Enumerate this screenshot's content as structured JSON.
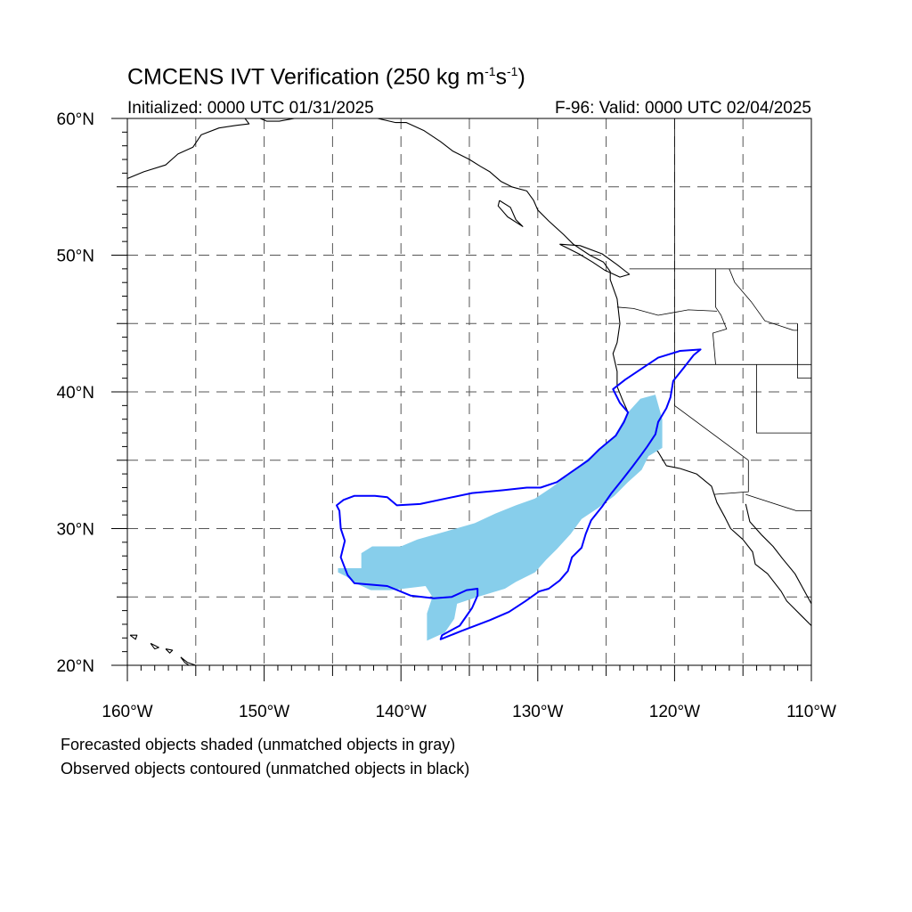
{
  "title": {
    "main": "CMCENS IVT Verification (250 kg m",
    "sup1": "-1",
    "mid": "s",
    "sup2": "-1",
    "end": ")"
  },
  "subtitle": {
    "initialized": "Initialized: 0000 UTC 01/31/2025",
    "valid": "F-96: Valid: 0000 UTC 02/04/2025"
  },
  "map": {
    "lon_range": [
      -160,
      -110
    ],
    "lat_range": [
      20,
      60
    ],
    "lat_ticks": [
      {
        "value": 20,
        "label": "20°N"
      },
      {
        "value": 30,
        "label": "30°N"
      },
      {
        "value": 40,
        "label": "40°N"
      },
      {
        "value": 50,
        "label": "50°N"
      },
      {
        "value": 60,
        "label": "60°N"
      }
    ],
    "lon_ticks": [
      {
        "value": -160,
        "label": "160°W"
      },
      {
        "value": -150,
        "label": "150°W"
      },
      {
        "value": -140,
        "label": "140°W"
      },
      {
        "value": -130,
        "label": "130°W"
      },
      {
        "value": -120,
        "label": "120°W"
      },
      {
        "value": -110,
        "label": "110°W"
      }
    ],
    "grid_spacing_deg": 5,
    "grid_style": "dashed",
    "colors": {
      "forecast_fill": "#87ceeb",
      "observed_contour": "#0000ff",
      "coastline": "#000000",
      "grid": "#555555"
    },
    "forecast_object": [
      [
        -144.0,
        27.1
      ],
      [
        -142.9,
        27.1
      ],
      [
        -142.9,
        28.2
      ],
      [
        -142.1,
        28.7
      ],
      [
        -140.0,
        28.7
      ],
      [
        -138.8,
        29.2
      ],
      [
        -136.7,
        29.8
      ],
      [
        -134.6,
        30.4
      ],
      [
        -133.1,
        31.1
      ],
      [
        -131.6,
        31.7
      ],
      [
        -130.2,
        32.2
      ],
      [
        -129.0,
        33.0
      ],
      [
        -127.8,
        33.9
      ],
      [
        -126.6,
        34.9
      ],
      [
        -125.6,
        35.7
      ],
      [
        -124.5,
        36.6
      ],
      [
        -123.8,
        37.8
      ],
      [
        -123.4,
        38.5
      ],
      [
        -122.5,
        39.5
      ],
      [
        -121.4,
        39.8
      ],
      [
        -120.9,
        38.0
      ],
      [
        -120.9,
        35.9
      ],
      [
        -121.9,
        35.3
      ],
      [
        -122.4,
        34.3
      ],
      [
        -123.4,
        33.4
      ],
      [
        -124.4,
        32.4
      ],
      [
        -125.6,
        31.5
      ],
      [
        -126.8,
        30.7
      ],
      [
        -127.6,
        29.6
      ],
      [
        -128.6,
        28.5
      ],
      [
        -129.4,
        27.7
      ],
      [
        -130.2,
        26.8
      ],
      [
        -131.6,
        26.1
      ],
      [
        -132.4,
        25.6
      ],
      [
        -134.4,
        25.0
      ],
      [
        -135.9,
        24.5
      ],
      [
        -136.1,
        23.4
      ],
      [
        -136.8,
        22.4
      ],
      [
        -138.1,
        21.8
      ],
      [
        -138.1,
        23.8
      ],
      [
        -137.7,
        25.0
      ],
      [
        -138.2,
        25.8
      ],
      [
        -140.7,
        25.5
      ],
      [
        -142.2,
        25.5
      ],
      [
        -143.3,
        26.0
      ],
      [
        -144.0,
        26.5
      ],
      [
        -144.6,
        26.8
      ],
      [
        -144.6,
        27.1
      ]
    ],
    "observed_object": [
      [
        -144.2,
        32.1
      ],
      [
        -143.4,
        32.4
      ],
      [
        -141.9,
        32.4
      ],
      [
        -141.0,
        32.3
      ],
      [
        -140.3,
        31.7
      ],
      [
        -138.6,
        31.8
      ],
      [
        -136.7,
        32.2
      ],
      [
        -134.8,
        32.6
      ],
      [
        -132.6,
        32.8
      ],
      [
        -130.8,
        33.0
      ],
      [
        -129.8,
        33.0
      ],
      [
        -128.6,
        33.4
      ],
      [
        -127.6,
        34.1
      ],
      [
        -126.3,
        35.0
      ],
      [
        -125.5,
        35.8
      ],
      [
        -124.3,
        36.8
      ],
      [
        -123.7,
        37.8
      ],
      [
        -123.4,
        38.5
      ],
      [
        -124.0,
        39.2
      ],
      [
        -124.5,
        40.2
      ],
      [
        -123.6,
        40.9
      ],
      [
        -122.1,
        41.9
      ],
      [
        -121.2,
        42.5
      ],
      [
        -119.6,
        43.0
      ],
      [
        -118.1,
        43.1
      ],
      [
        -118.6,
        42.7
      ],
      [
        -119.3,
        41.8
      ],
      [
        -120.1,
        40.8
      ],
      [
        -120.3,
        39.6
      ],
      [
        -120.6,
        38.8
      ],
      [
        -121.2,
        37.8
      ],
      [
        -121.4,
        36.9
      ],
      [
        -122.0,
        36.0
      ],
      [
        -122.5,
        35.3
      ],
      [
        -123.1,
        34.5
      ],
      [
        -123.8,
        33.6
      ],
      [
        -124.6,
        32.6
      ],
      [
        -125.3,
        31.6
      ],
      [
        -126.1,
        30.6
      ],
      [
        -126.5,
        29.6
      ],
      [
        -126.8,
        28.6
      ],
      [
        -127.5,
        27.9
      ],
      [
        -127.8,
        26.9
      ],
      [
        -128.4,
        26.2
      ],
      [
        -129.2,
        25.6
      ],
      [
        -129.9,
        25.4
      ],
      [
        -130.9,
        24.7
      ],
      [
        -132.1,
        23.9
      ],
      [
        -133.5,
        23.3
      ],
      [
        -135.6,
        22.5
      ],
      [
        -137.1,
        21.9
      ],
      [
        -137.0,
        22.2
      ],
      [
        -135.7,
        22.9
      ],
      [
        -134.8,
        24.2
      ],
      [
        -134.4,
        25.1
      ],
      [
        -134.4,
        25.6
      ],
      [
        -135.2,
        25.5
      ],
      [
        -136.3,
        25.0
      ],
      [
        -137.6,
        24.9
      ],
      [
        -139.3,
        25.1
      ],
      [
        -141.0,
        25.8
      ],
      [
        -143.4,
        26.0
      ],
      [
        -143.9,
        26.6
      ],
      [
        -144.4,
        27.9
      ],
      [
        -144.1,
        29.1
      ],
      [
        -144.4,
        30.0
      ],
      [
        -144.5,
        31.3
      ],
      [
        -144.7,
        31.7
      ],
      [
        -144.2,
        32.1
      ]
    ],
    "coastlines": [
      [
        [
          -160,
          55.6
        ],
        [
          -158.8,
          56.1
        ],
        [
          -157.2,
          56.6
        ],
        [
          -156.3,
          57.4
        ],
        [
          -155.2,
          57.9
        ],
        [
          -154.6,
          58.8
        ],
        [
          -153.3,
          59.3
        ],
        [
          -152.0,
          59.5
        ],
        [
          -151.1,
          59.6
        ],
        [
          -151.4,
          60.0
        ]
      ],
      [
        [
          -150.3,
          60.0
        ],
        [
          -149.8,
          59.8
        ],
        [
          -148.9,
          59.8
        ],
        [
          -147.8,
          60.0
        ]
      ],
      [
        [
          -141.7,
          60.0
        ],
        [
          -140.4,
          59.7
        ],
        [
          -139.6,
          59.7
        ],
        [
          -138.3,
          59.1
        ],
        [
          -137.1,
          58.3
        ],
        [
          -136.2,
          57.6
        ],
        [
          -135.0,
          57.0
        ],
        [
          -134.2,
          56.5
        ],
        [
          -133.5,
          56.1
        ],
        [
          -132.7,
          55.4
        ],
        [
          -131.9,
          55.0
        ],
        [
          -130.8,
          54.7
        ],
        [
          -130.3,
          54.0
        ],
        [
          -130.0,
          53.3
        ],
        [
          -129.2,
          52.5
        ],
        [
          -128.1,
          51.5
        ],
        [
          -127.4,
          50.8
        ],
        [
          -126.2,
          50.0
        ],
        [
          -125.2,
          49.5
        ],
        [
          -124.7,
          48.8
        ],
        [
          -124.7,
          48.2
        ],
        [
          -124.2,
          46.8
        ],
        [
          -124.0,
          45.0
        ],
        [
          -124.2,
          43.6
        ],
        [
          -124.5,
          42.8
        ],
        [
          -124.2,
          41.5
        ],
        [
          -124.2,
          40.4
        ],
        [
          -123.8,
          39.4
        ],
        [
          -123.4,
          38.5
        ],
        [
          -122.8,
          38.0
        ],
        [
          -122.5,
          37.6
        ],
        [
          -122.3,
          36.9
        ],
        [
          -121.9,
          36.4
        ],
        [
          -121.2,
          35.6
        ],
        [
          -120.6,
          34.6
        ],
        [
          -119.6,
          34.4
        ],
        [
          -118.4,
          34.0
        ],
        [
          -117.3,
          33.1
        ],
        [
          -117.1,
          32.5
        ],
        [
          -116.9,
          31.9
        ],
        [
          -116.3,
          30.8
        ],
        [
          -115.9,
          30.0
        ],
        [
          -115.0,
          29.2
        ],
        [
          -114.3,
          28.3
        ],
        [
          -114.1,
          27.4
        ],
        [
          -113.2,
          26.7
        ],
        [
          -112.2,
          25.4
        ],
        [
          -111.8,
          24.7
        ],
        [
          -110.6,
          23.5
        ],
        [
          -110.0,
          22.9
        ]
      ],
      [
        [
          -114.8,
          31.8
        ],
        [
          -114.5,
          30.5
        ],
        [
          -113.6,
          29.5
        ],
        [
          -112.8,
          28.7
        ],
        [
          -112.1,
          27.8
        ],
        [
          -111.2,
          26.7
        ],
        [
          -110.6,
          25.6
        ],
        [
          -110.0,
          24.5
        ]
      ],
      [
        [
          -132.8,
          54.0
        ],
        [
          -132.0,
          53.5
        ],
        [
          -131.6,
          52.6
        ],
        [
          -131.1,
          52.1
        ],
        [
          -132.2,
          52.8
        ],
        [
          -132.9,
          53.6
        ],
        [
          -132.8,
          54.0
        ]
      ],
      [
        [
          -128.4,
          50.8
        ],
        [
          -127.0,
          50.1
        ],
        [
          -126.0,
          49.5
        ],
        [
          -125.1,
          48.9
        ],
        [
          -124.0,
          48.4
        ],
        [
          -123.3,
          48.6
        ],
        [
          -124.2,
          49.3
        ],
        [
          -125.3,
          50.1
        ],
        [
          -126.9,
          50.7
        ],
        [
          -128.4,
          50.8
        ]
      ],
      [
        [
          -156.1,
          20.6
        ],
        [
          -155.8,
          20.2
        ],
        [
          -155.2,
          19.8
        ],
        [
          -155.0,
          20.0
        ],
        [
          -155.6,
          20.2
        ],
        [
          -156.1,
          20.6
        ]
      ],
      [
        [
          -159.8,
          22.2
        ],
        [
          -159.3,
          22.2
        ],
        [
          -159.4,
          21.9
        ],
        [
          -159.8,
          22.2
        ]
      ],
      [
        [
          -158.3,
          21.6
        ],
        [
          -157.7,
          21.3
        ],
        [
          -158.0,
          21.2
        ],
        [
          -158.3,
          21.6
        ]
      ],
      [
        [
          -157.2,
          21.2
        ],
        [
          -156.7,
          21.1
        ],
        [
          -156.9,
          20.9
        ],
        [
          -157.2,
          21.2
        ]
      ]
    ],
    "borders": [
      [
        [
          -123.3,
          49.0
        ],
        [
          -110.0,
          49.0
        ]
      ],
      [
        [
          -124.2,
          46.2
        ],
        [
          -123.0,
          46.1
        ],
        [
          -121.2,
          45.6
        ],
        [
          -119.0,
          46.0
        ],
        [
          -116.9,
          45.9
        ]
      ],
      [
        [
          -124.2,
          42.0
        ],
        [
          -110.0,
          42.0
        ]
      ],
      [
        [
          -120.0,
          60.0
        ],
        [
          -120.0,
          39.0
        ],
        [
          -114.6,
          35.0
        ]
      ],
      [
        [
          -117.0,
          49.0
        ],
        [
          -117.0,
          46.2
        ],
        [
          -116.6,
          45.6
        ],
        [
          -116.2,
          44.6
        ],
        [
          -117.2,
          44.3
        ],
        [
          -117.0,
          42.0
        ]
      ],
      [
        [
          -114.6,
          35.0
        ],
        [
          -114.6,
          32.7
        ],
        [
          -117.1,
          32.5
        ]
      ],
      [
        [
          -114.8,
          32.5
        ],
        [
          -111.1,
          31.3
        ],
        [
          -110.0,
          31.3
        ]
      ],
      [
        [
          -114.0,
          42.0
        ],
        [
          -114.0,
          37.0
        ],
        [
          -110.0,
          37.0
        ]
      ],
      [
        [
          -111.0,
          45.0
        ],
        [
          -111.0,
          41.0
        ],
        [
          -110.0,
          41.0
        ]
      ],
      [
        [
          -116.0,
          49.0
        ],
        [
          -115.6,
          48.0
        ],
        [
          -114.4,
          46.6
        ],
        [
          -113.4,
          45.2
        ],
        [
          -111.3,
          44.5
        ],
        [
          -111.0,
          44.5
        ],
        [
          -111.0,
          45.0
        ]
      ]
    ]
  },
  "captions": {
    "line1": "Forecasted objects shaded (unmatched objects in gray)",
    "line2": "Observed objects contoured (unmatched objects in black)"
  }
}
